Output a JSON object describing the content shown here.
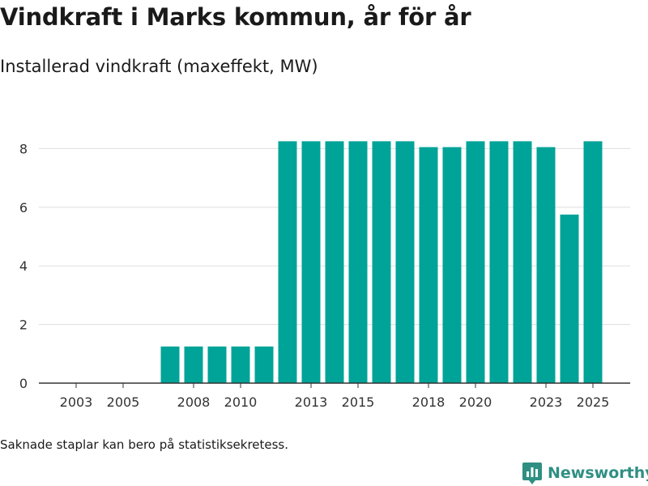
{
  "title": "Vindkraft i Marks kommun, år för år",
  "subtitle": "Installerad vindkraft (maxeffekt, MW)",
  "note": "Saknade staplar kan bero på statistiksekretess.",
  "brand": {
    "name": "Newsworthy",
    "icon": "newsworthy-logo-icon"
  },
  "colors": {
    "bar": "#00a398",
    "grid": "#dddddd",
    "axis": "#333333",
    "brand": "#2f8f83"
  },
  "chart_data": {
    "type": "bar",
    "title": "Vindkraft i Marks kommun, år för år",
    "subtitle": "Installerad vindkraft (maxeffekt, MW)",
    "xlabel": "",
    "ylabel": "",
    "categories": [
      2003,
      2004,
      2005,
      2006,
      2007,
      2008,
      2009,
      2010,
      2011,
      2012,
      2013,
      2014,
      2015,
      2016,
      2017,
      2018,
      2019,
      2020,
      2021,
      2022,
      2023,
      2024,
      2025
    ],
    "values": [
      0,
      0,
      0,
      0,
      1.25,
      1.25,
      1.25,
      1.25,
      1.25,
      8.25,
      8.25,
      8.25,
      8.25,
      8.25,
      8.25,
      8.05,
      8.05,
      8.25,
      8.25,
      8.25,
      8.05,
      5.75,
      8.25
    ],
    "x_tick_labels": [
      "2003",
      "2005",
      "2008",
      "2010",
      "2013",
      "2015",
      "2018",
      "2020",
      "2023",
      "2025"
    ],
    "y_ticks": [
      0,
      2,
      4,
      6,
      8
    ],
    "ylim": [
      0,
      9.2
    ],
    "grid": true,
    "legend": "none"
  }
}
